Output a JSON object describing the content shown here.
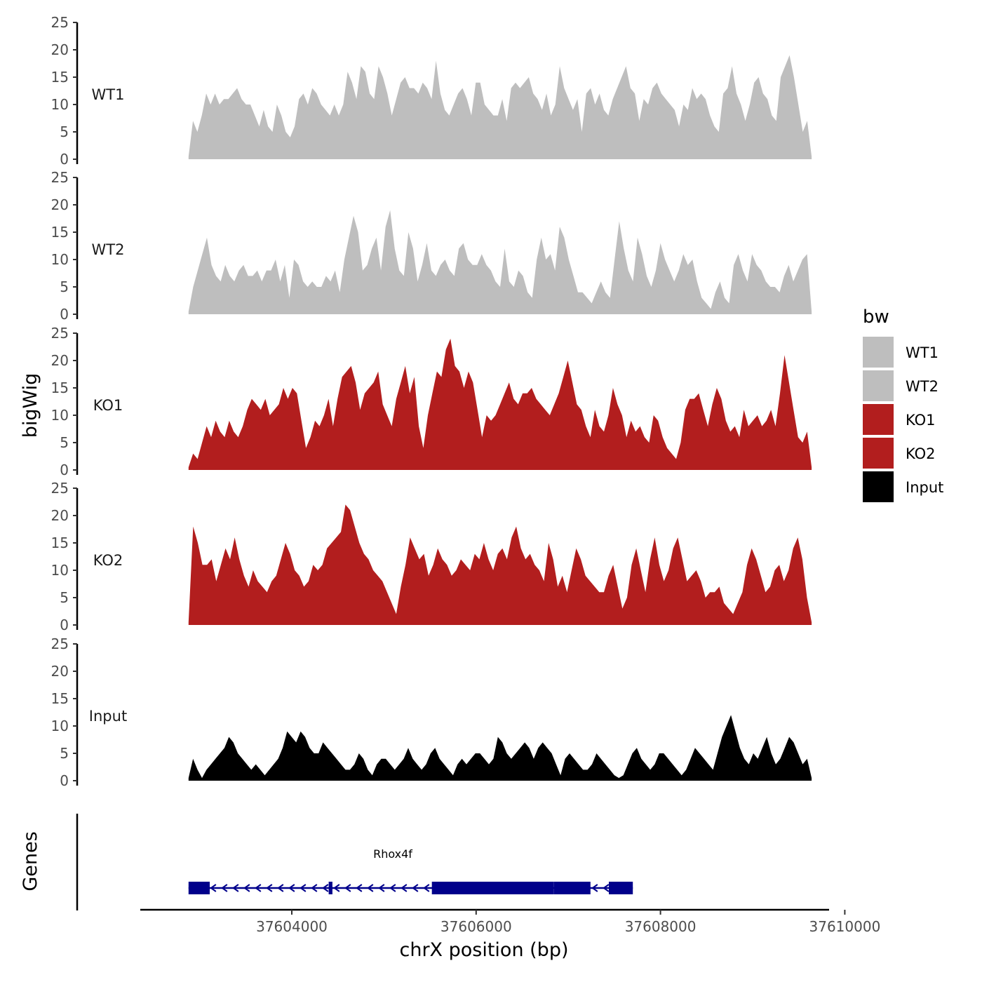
{
  "chart_data": {
    "type": "area",
    "ylabel": "bigWig",
    "xlabel": "chrX position (bp)",
    "ylim": [
      0,
      25
    ],
    "yticks": [
      "0",
      "5",
      "10",
      "15",
      "20",
      "25"
    ],
    "xlim": [
      37602500,
      37610000
    ],
    "xticks": [
      {
        "value": 37604000,
        "label": "37604000"
      },
      {
        "value": 37606000,
        "label": "37606000"
      },
      {
        "value": 37608000,
        "label": "37608000"
      },
      {
        "value": 37610000,
        "label": "37610000"
      }
    ],
    "genes_label": "Genes",
    "legend": {
      "title": "bw",
      "entries": [
        {
          "name": "WT1",
          "color": "#bebebe"
        },
        {
          "name": "WT2",
          "color": "#bebebe"
        },
        {
          "name": "KO1",
          "color": "#b21e1e"
        },
        {
          "name": "KO2",
          "color": "#b21e1e"
        },
        {
          "name": "Input",
          "color": "#000000"
        }
      ]
    },
    "x_start": 37602880,
    "x_end": 37609640,
    "series": [
      {
        "name": "WT1",
        "label": "WT1",
        "color": "#bebebe",
        "values": [
          0.5,
          7,
          5,
          8,
          12,
          10,
          12,
          10,
          11,
          11,
          12,
          13,
          11,
          10,
          10,
          8,
          6,
          9,
          6,
          5,
          10,
          8,
          5,
          4,
          6,
          11,
          12,
          10,
          13,
          12,
          10,
          9,
          8,
          10,
          8,
          10,
          16,
          14,
          11,
          17,
          16,
          12,
          11,
          17,
          15,
          12,
          8,
          11,
          14,
          15,
          13,
          13,
          12,
          14,
          13,
          11,
          18,
          12,
          9,
          8,
          10,
          12,
          13,
          11,
          8,
          14,
          14,
          10,
          9,
          8,
          8,
          11,
          7,
          13,
          14,
          13,
          14,
          15,
          12,
          11,
          9,
          12,
          8,
          10,
          17,
          13,
          11,
          9,
          11,
          5,
          12,
          13,
          10,
          12,
          9,
          8,
          11,
          13,
          15,
          17,
          13,
          12,
          7,
          11,
          10,
          13,
          14,
          12,
          11,
          10,
          9,
          6,
          10,
          9,
          13,
          11,
          12,
          11,
          8,
          6,
          5,
          12,
          13,
          17,
          12,
          10,
          7,
          10,
          14,
          15,
          12,
          11,
          8,
          7,
          15,
          17,
          19,
          15,
          10,
          5,
          7,
          0.5
        ]
      },
      {
        "name": "WT2",
        "label": "WT2",
        "color": "#bebebe",
        "values": [
          0.5,
          5,
          8,
          11,
          14,
          9,
          7,
          6,
          9,
          7,
          6,
          8,
          9,
          7,
          7,
          8,
          6,
          8,
          8,
          10,
          6,
          9,
          3,
          10,
          9,
          6,
          5,
          6,
          5,
          5,
          7,
          6,
          8,
          4,
          10,
          14,
          18,
          15,
          8,
          9,
          12,
          14,
          8,
          16,
          19,
          12,
          8,
          7,
          15,
          12,
          6,
          9,
          13,
          8,
          7,
          9,
          10,
          8,
          7,
          12,
          13,
          10,
          9,
          9,
          11,
          9,
          8,
          6,
          5,
          12,
          6,
          5,
          8,
          7,
          4,
          3,
          10,
          14,
          10,
          11,
          8,
          16,
          14,
          10,
          7,
          4,
          4,
          3,
          2,
          4,
          6,
          4,
          3,
          10,
          17,
          12,
          8,
          6,
          14,
          11,
          7,
          5,
          8,
          13,
          10,
          8,
          6,
          8,
          11,
          9,
          10,
          6,
          3,
          2,
          1,
          4,
          6,
          3,
          2,
          9,
          11,
          8,
          6,
          11,
          9,
          8,
          6,
          5,
          5,
          4,
          7,
          9,
          6,
          8,
          10,
          11,
          0.5
        ]
      },
      {
        "name": "KO1",
        "label": "KO1",
        "color": "#b21e1e",
        "values": [
          0.5,
          3,
          2,
          5,
          8,
          6,
          9,
          7,
          6,
          9,
          7,
          6,
          8,
          11,
          13,
          12,
          11,
          13,
          10,
          11,
          12,
          15,
          13,
          15,
          14,
          9,
          4,
          6,
          9,
          8,
          10,
          13,
          8,
          13,
          17,
          18,
          19,
          16,
          11,
          14,
          15,
          16,
          18,
          12,
          10,
          8,
          13,
          16,
          19,
          14,
          17,
          8,
          4,
          10,
          14,
          18,
          17,
          22,
          24,
          19,
          18,
          15,
          18,
          16,
          11,
          6,
          10,
          9,
          10,
          12,
          14,
          16,
          13,
          12,
          14,
          14,
          15,
          13,
          12,
          11,
          10,
          12,
          14,
          17,
          20,
          16,
          12,
          11,
          8,
          6,
          11,
          8,
          7,
          10,
          15,
          12,
          10,
          6,
          9,
          7,
          8,
          6,
          5,
          10,
          9,
          6,
          4,
          3,
          2,
          5,
          11,
          13,
          13,
          14,
          11,
          8,
          12,
          15,
          13,
          9,
          7,
          8,
          6,
          11,
          8,
          9,
          10,
          8,
          9,
          11,
          8,
          14,
          21,
          16,
          11,
          6,
          5,
          7,
          0.5
        ]
      },
      {
        "name": "KO2",
        "label": "KO2",
        "color": "#b21e1e",
        "values": [
          0.5,
          18,
          15,
          11,
          11,
          12,
          8,
          11,
          14,
          12,
          16,
          12,
          9,
          7,
          10,
          8,
          7,
          6,
          8,
          9,
          12,
          15,
          13,
          10,
          9,
          7,
          8,
          11,
          10,
          11,
          14,
          15,
          16,
          17,
          22,
          21,
          18,
          15,
          13,
          12,
          10,
          9,
          8,
          6,
          4,
          2,
          7,
          11,
          16,
          14,
          12,
          13,
          9,
          11,
          14,
          12,
          11,
          9,
          10,
          12,
          11,
          10,
          13,
          12,
          15,
          12,
          10,
          13,
          14,
          12,
          16,
          18,
          14,
          12,
          13,
          11,
          10,
          8,
          15,
          12,
          7,
          9,
          6,
          10,
          14,
          12,
          9,
          8,
          7,
          6,
          6,
          9,
          11,
          7,
          3,
          5,
          11,
          14,
          10,
          6,
          12,
          16,
          11,
          8,
          10,
          14,
          16,
          12,
          8,
          9,
          10,
          8,
          5,
          6,
          6,
          7,
          4,
          3,
          2,
          4,
          6,
          11,
          14,
          12,
          9,
          6,
          7,
          10,
          11,
          8,
          10,
          14,
          16,
          12,
          5,
          0.5
        ]
      },
      {
        "name": "Input",
        "label": "Input",
        "color": "#000000",
        "values": [
          0.5,
          4,
          2,
          0.5,
          2,
          3,
          4,
          5,
          6,
          8,
          7,
          5,
          4,
          3,
          2,
          3,
          2,
          1,
          2,
          3,
          4,
          6,
          9,
          8,
          7,
          9,
          8,
          6,
          5,
          5,
          7,
          6,
          5,
          4,
          3,
          2,
          2,
          3,
          5,
          4,
          2,
          1,
          3,
          4,
          4,
          3,
          2,
          3,
          4,
          6,
          4,
          3,
          2,
          3,
          5,
          6,
          4,
          3,
          2,
          1,
          3,
          4,
          3,
          4,
          5,
          5,
          4,
          3,
          4,
          8,
          7,
          5,
          4,
          5,
          6,
          7,
          6,
          4,
          6,
          7,
          6,
          5,
          3,
          1,
          4,
          5,
          4,
          3,
          2,
          2,
          3,
          5,
          4,
          3,
          2,
          1,
          0.5,
          1,
          3,
          5,
          6,
          4,
          3,
          2,
          3,
          5,
          5,
          4,
          3,
          2,
          1,
          2,
          4,
          6,
          5,
          4,
          3,
          2,
          5,
          8,
          10,
          12,
          9,
          6,
          4,
          3,
          5,
          4,
          6,
          8,
          5,
          3,
          4,
          6,
          8,
          7,
          5,
          3,
          4,
          0.5
        ]
      }
    ],
    "gene": {
      "name": "Rhox4f",
      "strand": "-",
      "start": 37602880,
      "end": 37607700,
      "exons": [
        {
          "start": 37602880,
          "end": 37603110
        },
        {
          "start": 37604400,
          "end": 37604440
        },
        {
          "start": 37605520,
          "end": 37606840
        },
        {
          "start": 37606840,
          "end": 37607240
        },
        {
          "start": 37607440,
          "end": 37607700
        }
      ]
    }
  }
}
